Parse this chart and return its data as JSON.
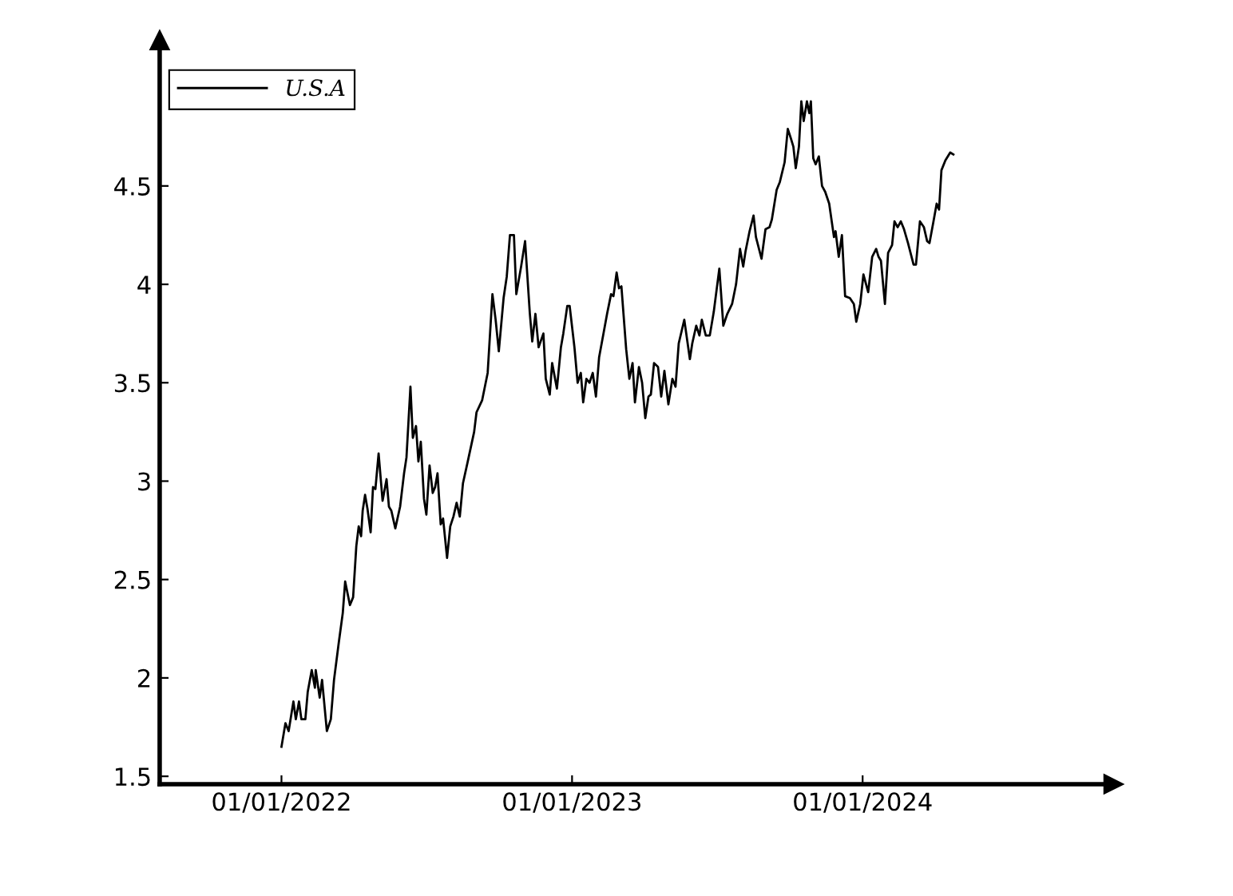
{
  "chart_data": {
    "type": "line",
    "x": [
      "2022-01-01",
      "2022-01-06",
      "2022-01-10",
      "2022-01-16",
      "2022-01-19",
      "2022-01-23",
      "2022-01-26",
      "2022-01-31",
      "2022-02-03",
      "2022-02-08",
      "2022-02-12",
      "2022-02-13",
      "2022-02-18",
      "2022-02-21",
      "2022-02-27",
      "2022-03-04",
      "2022-03-08",
      "2022-03-14",
      "2022-03-19",
      "2022-03-22",
      "2022-03-28",
      "2022-04-01",
      "2022-04-05",
      "2022-04-08",
      "2022-04-11",
      "2022-04-13",
      "2022-04-16",
      "2022-04-19",
      "2022-04-23",
      "2022-04-26",
      "2022-04-29",
      "2022-05-03",
      "2022-05-08",
      "2022-05-13",
      "2022-05-16",
      "2022-05-19",
      "2022-05-24",
      "2022-05-30",
      "2022-06-04",
      "2022-06-07",
      "2022-06-12",
      "2022-06-15",
      "2022-06-19",
      "2022-06-22",
      "2022-06-25",
      "2022-06-29",
      "2022-07-02",
      "2022-07-06",
      "2022-07-10",
      "2022-07-13",
      "2022-07-16",
      "2022-07-20",
      "2022-07-23",
      "2022-07-28",
      "2022-08-01",
      "2022-08-05",
      "2022-08-09",
      "2022-08-13",
      "2022-08-17",
      "2022-08-23",
      "2022-08-31",
      "2022-09-03",
      "2022-09-10",
      "2022-09-17",
      "2022-09-23",
      "2022-09-27",
      "2022-10-01",
      "2022-10-07",
      "2022-10-11",
      "2022-10-15",
      "2022-10-20",
      "2022-10-23",
      "2022-10-29",
      "2022-11-03",
      "2022-11-09",
      "2022-11-12",
      "2022-11-16",
      "2022-11-20",
      "2022-11-26",
      "2022-11-29",
      "2022-12-04",
      "2022-12-07",
      "2022-12-13",
      "2022-12-18",
      "2022-12-21",
      "2022-12-26",
      "2022-12-29",
      "2023-01-04",
      "2023-01-08",
      "2023-01-12",
      "2023-01-15",
      "2023-01-19",
      "2023-01-23",
      "2023-01-27",
      "2023-01-31",
      "2023-02-04",
      "2023-02-09",
      "2023-02-14",
      "2023-02-19",
      "2023-02-22",
      "2023-02-26",
      "2023-03-01",
      "2023-03-04",
      "2023-03-10",
      "2023-03-14",
      "2023-03-18",
      "2023-03-21",
      "2023-03-26",
      "2023-03-30",
      "2023-04-03",
      "2023-04-07",
      "2023-04-10",
      "2023-04-14",
      "2023-04-19",
      "2023-04-23",
      "2023-04-27",
      "2023-05-02",
      "2023-05-07",
      "2023-05-11",
      "2023-05-15",
      "2023-05-22",
      "2023-05-29",
      "2023-06-01",
      "2023-06-06",
      "2023-06-10",
      "2023-06-13",
      "2023-06-18",
      "2023-06-23",
      "2023-06-28",
      "2023-07-05",
      "2023-07-10",
      "2023-07-15",
      "2023-07-21",
      "2023-07-26",
      "2023-07-31",
      "2023-08-04",
      "2023-08-07",
      "2023-08-12",
      "2023-08-17",
      "2023-08-20",
      "2023-08-27",
      "2023-09-01",
      "2023-09-06",
      "2023-09-09",
      "2023-09-15",
      "2023-09-19",
      "2023-09-25",
      "2023-09-29",
      "2023-10-03",
      "2023-10-06",
      "2023-10-09",
      "2023-10-13",
      "2023-10-16",
      "2023-10-19",
      "2023-10-23",
      "2023-10-26",
      "2023-10-28",
      "2023-10-31",
      "2023-11-03",
      "2023-11-07",
      "2023-11-11",
      "2023-11-15",
      "2023-11-20",
      "2023-11-26",
      "2023-11-28",
      "2023-12-02",
      "2023-12-06",
      "2023-12-10",
      "2023-12-16",
      "2023-12-21",
      "2023-12-24",
      "2023-12-29",
      "2024-01-02",
      "2024-01-08",
      "2024-01-13",
      "2024-01-18",
      "2024-01-21",
      "2024-01-24",
      "2024-01-29",
      "2024-02-02",
      "2024-02-07",
      "2024-02-10",
      "2024-02-14",
      "2024-02-18",
      "2024-02-22",
      "2024-02-27",
      "2024-03-05",
      "2024-03-08",
      "2024-03-13",
      "2024-03-18",
      "2024-03-22",
      "2024-03-25",
      "2024-03-30",
      "2024-04-03",
      "2024-04-06",
      "2024-04-09",
      "2024-04-14",
      "2024-04-20",
      "2024-04-24"
    ],
    "series": [
      {
        "name": "U.S.A",
        "color": "#000000",
        "values": [
          1.65,
          1.77,
          1.73,
          1.88,
          1.79,
          1.88,
          1.79,
          1.79,
          1.93,
          2.04,
          1.95,
          2.04,
          1.9,
          1.99,
          1.73,
          1.79,
          1.99,
          2.18,
          2.33,
          2.49,
          2.37,
          2.41,
          2.67,
          2.77,
          2.72,
          2.85,
          2.93,
          2.86,
          2.74,
          2.97,
          2.96,
          3.14,
          2.9,
          3.01,
          2.87,
          2.85,
          2.76,
          2.87,
          3.04,
          3.12,
          3.48,
          3.22,
          3.28,
          3.1,
          3.2,
          2.91,
          2.83,
          3.08,
          2.94,
          2.97,
          3.04,
          2.78,
          2.81,
          2.61,
          2.77,
          2.82,
          2.89,
          2.82,
          2.99,
          3.1,
          3.25,
          3.35,
          3.41,
          3.55,
          3.95,
          3.82,
          3.66,
          3.93,
          4.04,
          4.25,
          4.25,
          3.95,
          4.09,
          4.22,
          3.85,
          3.71,
          3.85,
          3.68,
          3.75,
          3.52,
          3.44,
          3.6,
          3.47,
          3.68,
          3.75,
          3.89,
          3.89,
          3.68,
          3.5,
          3.55,
          3.4,
          3.52,
          3.5,
          3.55,
          3.43,
          3.63,
          3.74,
          3.85,
          3.95,
          3.94,
          4.06,
          3.98,
          3.99,
          3.67,
          3.52,
          3.6,
          3.4,
          3.58,
          3.5,
          3.32,
          3.43,
          3.44,
          3.6,
          3.58,
          3.43,
          3.56,
          3.39,
          3.52,
          3.48,
          3.7,
          3.82,
          3.62,
          3.7,
          3.79,
          3.74,
          3.82,
          3.74,
          3.74,
          3.86,
          4.08,
          3.79,
          3.85,
          3.9,
          4.0,
          4.18,
          4.09,
          4.17,
          4.27,
          4.35,
          4.24,
          4.13,
          4.28,
          4.29,
          4.33,
          4.48,
          4.52,
          4.62,
          4.79,
          4.74,
          4.7,
          4.59,
          4.7,
          4.93,
          4.83,
          4.93,
          4.87,
          4.93,
          4.64,
          4.61,
          4.65,
          4.5,
          4.47,
          4.41,
          4.24,
          4.27,
          4.14,
          4.25,
          3.94,
          3.93,
          3.9,
          3.81,
          3.9,
          4.05,
          3.96,
          4.14,
          4.18,
          4.14,
          4.12,
          3.9,
          4.16,
          4.2,
          4.32,
          4.29,
          4.32,
          4.28,
          4.21,
          4.1,
          4.1,
          4.32,
          4.29,
          4.22,
          4.21,
          4.32,
          4.41,
          4.38,
          4.58,
          4.63,
          4.67,
          4.66
        ]
      }
    ],
    "xlim": [
      "2021-08-01",
      "2024-11-11"
    ],
    "xticks": [
      {
        "value": "2022-01-01",
        "label": "01/01/2022"
      },
      {
        "value": "2023-01-01",
        "label": "01/01/2023"
      },
      {
        "value": "2024-01-01",
        "label": "01/01/2024"
      }
    ],
    "ylim": [
      1.46,
      5.24
    ],
    "yticks": [
      1.5,
      2,
      2.5,
      3,
      3.5,
      4,
      4.5
    ],
    "grid": false,
    "legend": "top left",
    "marker": "none",
    "line_style": "solid"
  }
}
